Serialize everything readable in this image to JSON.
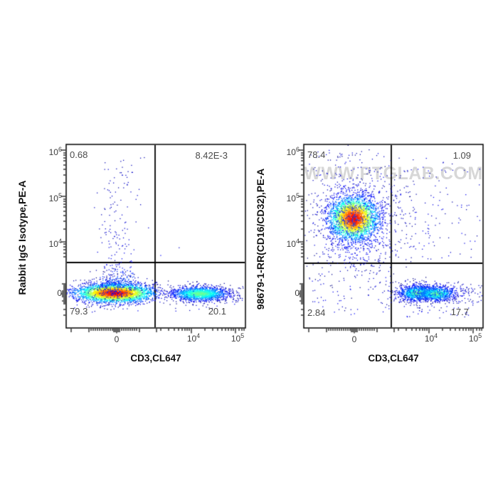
{
  "watermark": "WWW.PTGLAB.COM",
  "colors": {
    "background": "#ffffff",
    "frame": "#000000",
    "axis_text": "#3d3d3d",
    "watermark": "#d7d7d7"
  },
  "panels": [
    {
      "y_axis_label": "Rabbit IgG Isotype,PE-A",
      "x_axis_label": "CD3,CL647",
      "y_ticks": [
        {
          "base": "10",
          "exp": "6"
        },
        {
          "base": "10",
          "exp": "5"
        },
        {
          "base": "10",
          "exp": "4"
        },
        {
          "base": "0",
          "exp": ""
        }
      ],
      "x_ticks": [
        {
          "base": "0",
          "exp": ""
        },
        {
          "base": "10",
          "exp": "4"
        },
        {
          "base": "10",
          "exp": "5"
        }
      ],
      "quadrants": {
        "top_left": "0.68",
        "top_right": "8.42E-3",
        "bottom_left": "79.3",
        "bottom_right": "20.1"
      }
    },
    {
      "y_axis_label": "98679-1-RR(CD16/CD32),PE-A",
      "x_axis_label": "CD3,CL647",
      "y_ticks": [
        {
          "base": "10",
          "exp": "6"
        },
        {
          "base": "10",
          "exp": "5"
        },
        {
          "base": "10",
          "exp": "4"
        },
        {
          "base": "0",
          "exp": ""
        }
      ],
      "x_ticks": [
        {
          "base": "0",
          "exp": ""
        },
        {
          "base": "10",
          "exp": "4"
        },
        {
          "base": "10",
          "exp": "5"
        }
      ],
      "quadrants": {
        "top_left": "78.4",
        "top_right": "1.09",
        "bottom_left": "2.84",
        "bottom_right": "17.7"
      }
    }
  ],
  "chart_data": [
    {
      "type": "scatter",
      "panel": "left",
      "title": "Rabbit IgG isotype control vs CD3",
      "xlabel": "CD3,CL647",
      "ylabel": "Rabbit IgG Isotype,PE-A",
      "x_scale": "biexponential",
      "y_scale": "biexponential",
      "x_tick_values": [
        0,
        10000,
        100000
      ],
      "y_tick_values": [
        0,
        10000,
        100000,
        1000000
      ],
      "legend": "pseudocolor density (jet: blue=low, red=high)",
      "quadrant_percentages": {
        "upper_left": 0.68,
        "upper_right": 0.00842,
        "lower_left": 79.3,
        "lower_right": 20.1
      },
      "clusters": [
        {
          "kind": "gauss",
          "cx": 68,
          "cy": 209,
          "sx": 27,
          "sy": 6.5,
          "n": 3200,
          "hot": 1.0,
          "desc": "CD3- PE- main population, red core"
        },
        {
          "kind": "gauss",
          "cx": 70,
          "cy": 201,
          "sx": 22,
          "sy": 10,
          "n": 300,
          "hot": 0.18,
          "desc": "fuzz above main population"
        },
        {
          "kind": "gauss",
          "cx": 188,
          "cy": 210,
          "sx": 20,
          "sy": 5,
          "n": 1600,
          "hot": 0.55,
          "desc": "CD3+ PE- population, green-cyan core"
        },
        {
          "kind": "plume",
          "cx": 72,
          "sx": 12,
          "yBase": 198,
          "yTop": 18,
          "n": 270,
          "desc": "sparse PE plume rising to 10^6"
        },
        {
          "kind": "uniform",
          "x0": 5,
          "x1": 250,
          "y0": 192,
          "y1": 236,
          "n": 130,
          "desc": "baseline scatter"
        },
        {
          "kind": "uniform",
          "x0": 222,
          "x1": 252,
          "y0": 200,
          "y1": 222,
          "n": 25,
          "desc": "right tail"
        },
        {
          "kind": "uniform",
          "x0": 130,
          "x1": 215,
          "y0": 130,
          "y1": 163,
          "n": 2,
          "desc": "rare upper-right events"
        }
      ]
    },
    {
      "type": "scatter",
      "panel": "right",
      "title": "CD16/CD32 (98679-1-RR) vs CD3",
      "xlabel": "CD3,CL647",
      "ylabel": "98679-1-RR(CD16/CD32),PE-A",
      "x_scale": "biexponential",
      "y_scale": "biexponential",
      "x_tick_values": [
        0,
        10000,
        100000
      ],
      "y_tick_values": [
        0,
        10000,
        100000,
        1000000
      ],
      "legend": "pseudocolor density (jet: blue=low, red=high)",
      "quadrant_percentages": {
        "upper_left": 78.4,
        "upper_right": 1.09,
        "lower_left": 2.84,
        "lower_right": 17.7
      },
      "clusters": [
        {
          "kind": "gauss",
          "cx": 70,
          "cy": 104,
          "sx": 17,
          "sy": 15,
          "n": 3000,
          "hot": 1.0,
          "desc": "CD16/CD32+ CD3- population, red core ~3e4-1e5"
        },
        {
          "kind": "gauss",
          "cx": 72,
          "cy": 108,
          "sx": 32,
          "sy": 36,
          "n": 1000,
          "hot": 0.22,
          "desc": "blue halo around positive population"
        },
        {
          "kind": "uniform",
          "x0": 8,
          "x1": 120,
          "y0": 8,
          "y1": 50,
          "n": 45,
          "desc": "sparse top events"
        },
        {
          "kind": "gauss",
          "cx": 160,
          "cy": 209,
          "sx": 13,
          "sy": 5.5,
          "n": 850,
          "hot": 0.55,
          "desc": "CD3+ T cells lobe A"
        },
        {
          "kind": "gauss",
          "cx": 186,
          "cy": 210,
          "sx": 13,
          "sy": 5,
          "n": 750,
          "hot": 0.55,
          "desc": "CD3+ T cells lobe B"
        },
        {
          "kind": "gauss",
          "cx": 173,
          "cy": 208,
          "sx": 30,
          "sy": 8,
          "n": 450,
          "hot": 0.28,
          "desc": "T-cell cluster spread"
        },
        {
          "kind": "uniform",
          "x0": 127,
          "x1": 195,
          "y0": 18,
          "y1": 164,
          "n": 95,
          "desc": "upper-right sparse events"
        },
        {
          "kind": "uniform",
          "x0": 195,
          "x1": 248,
          "y0": 25,
          "y1": 160,
          "n": 40,
          "desc": "upper-right far sparse events"
        },
        {
          "kind": "uniform",
          "x0": 8,
          "x1": 122,
          "y0": 170,
          "y1": 242,
          "n": 65,
          "desc": "lower-left sparse events"
        },
        {
          "kind": "uniform",
          "x0": 230,
          "x1": 251,
          "y0": 196,
          "y1": 224,
          "n": 22,
          "desc": "right-edge events"
        },
        {
          "kind": "uniform",
          "x0": 135,
          "x1": 240,
          "y0": 218,
          "y1": 244,
          "n": 40,
          "desc": "below T-cell cluster"
        }
      ]
    }
  ]
}
